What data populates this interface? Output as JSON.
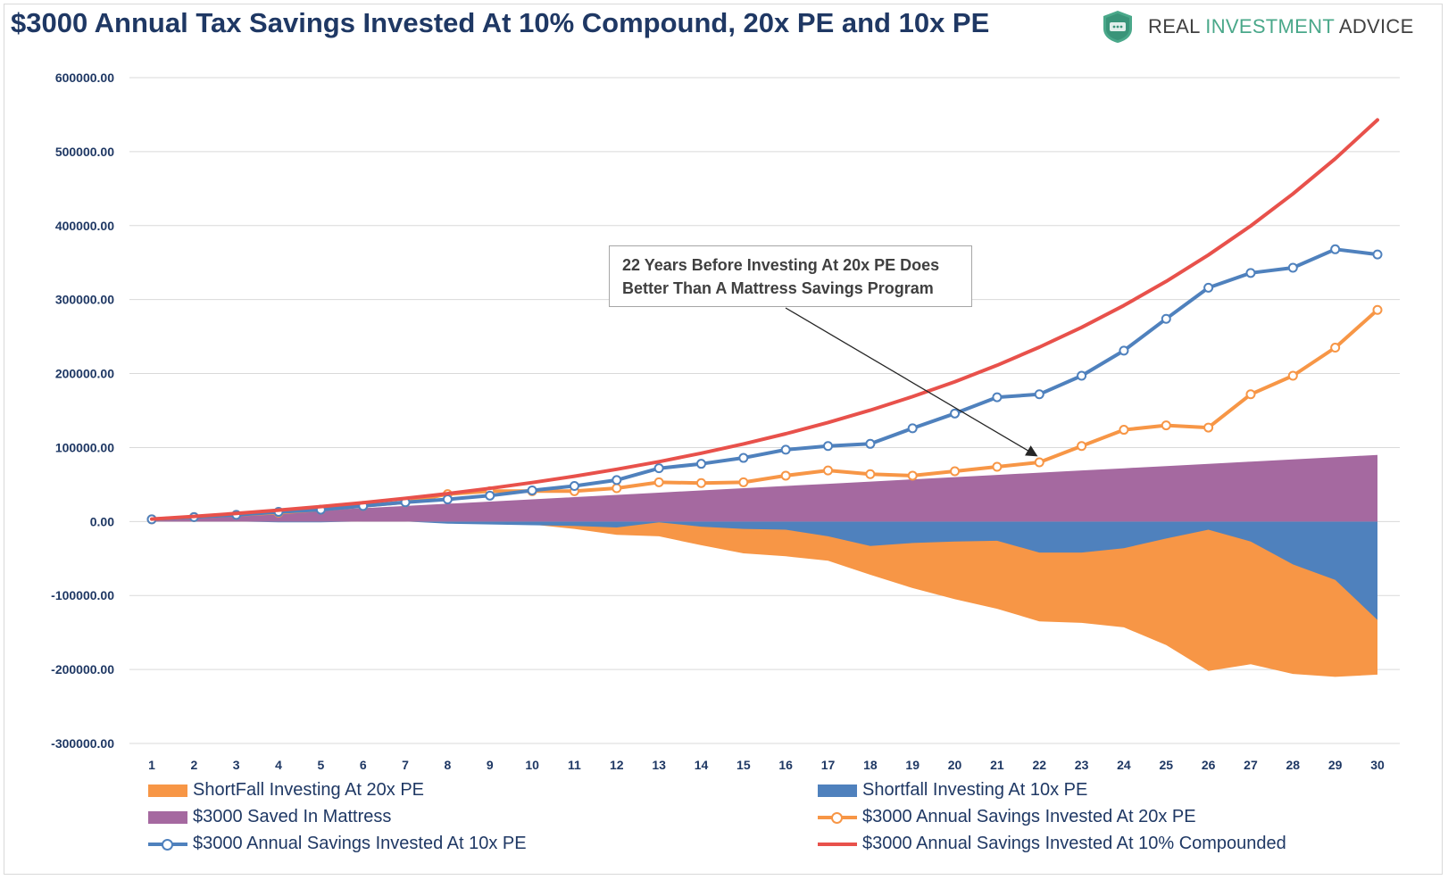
{
  "title": "$3000 Annual Tax Savings Invested At 10% Compound, 20x PE and 10x PE",
  "brand": {
    "word1": "REAL ",
    "word2": "INVESTMENT",
    "word3": " ADVICE",
    "icon": "shield-logo-icon"
  },
  "annotation": {
    "line1": "22 Years Before Investing At 20x PE Does",
    "line2": "Better Than A Mattress Savings Program"
  },
  "colors": {
    "title": "#1f3864",
    "shortfall_20x": "#f79646",
    "shortfall_10x": "#4f81bd",
    "mattress": "#a569a0",
    "invest_20x": "#f79646",
    "invest_10x": "#4f81bd",
    "compound_10pct": "#e8514b",
    "axis_text": "#1f3864"
  },
  "chart_data": {
    "type": "line",
    "title": "$3000 Annual Tax Savings Invested At 10% Compound, 20x PE and 10x PE",
    "xlabel": "",
    "ylabel": "",
    "ylim": [
      -300000,
      600000
    ],
    "yticks": [
      600000,
      500000,
      400000,
      300000,
      200000,
      100000,
      0,
      -100000,
      -200000,
      -300000
    ],
    "ytick_labels": [
      "600000.00",
      "500000.00",
      "400000.00",
      "300000.00",
      "200000.00",
      "100000.00",
      "0.00",
      "-100000.00",
      "-200000.00",
      "-300000.00"
    ],
    "x": [
      1,
      2,
      3,
      4,
      5,
      6,
      7,
      8,
      9,
      10,
      11,
      12,
      13,
      14,
      15,
      16,
      17,
      18,
      19,
      20,
      21,
      22,
      23,
      24,
      25,
      26,
      27,
      28,
      29,
      30
    ],
    "grid": true,
    "legend_position": "bottom",
    "series": [
      {
        "name": "ShortFall Investing At 20x PE",
        "kind": "area",
        "values": [
          0,
          0,
          0,
          0,
          0,
          0,
          0,
          -2000,
          -3000,
          -4000,
          -10000,
          -18000,
          -20000,
          -32000,
          -43000,
          -47000,
          -53000,
          -72000,
          -90000,
          -105000,
          -118000,
          -135000,
          -137000,
          -143000,
          -167000,
          -202000,
          -193000,
          -206000,
          -210000,
          -207000
        ]
      },
      {
        "name": "Shortfall Investing At 10x PE",
        "kind": "area",
        "values": [
          0,
          0,
          0,
          -1000,
          -1000,
          0,
          0,
          -3000,
          -4000,
          -5000,
          -6000,
          -8000,
          -1000,
          -7000,
          -10000,
          -11000,
          -20000,
          -33000,
          -29000,
          -27000,
          -26000,
          -42000,
          -42000,
          -36000,
          -23000,
          -11000,
          -27000,
          -58000,
          -79000,
          -133000
        ]
      },
      {
        "name": "$3000 Saved In Mattress",
        "kind": "area",
        "values": [
          3000,
          6000,
          9000,
          12000,
          15000,
          18000,
          21000,
          24000,
          27000,
          30000,
          33000,
          36000,
          39000,
          42000,
          45000,
          48000,
          51000,
          54000,
          57000,
          60000,
          63000,
          66000,
          69000,
          72000,
          75000,
          78000,
          81000,
          84000,
          87000,
          90000
        ]
      },
      {
        "name": "$3000 Annual Savings Invested At 20x PE",
        "kind": "line",
        "values": [
          3000,
          6000,
          9000,
          12000,
          16000,
          21000,
          26000,
          37000,
          41000,
          41000,
          41000,
          45000,
          53000,
          52000,
          53000,
          62000,
          69000,
          64000,
          62000,
          68000,
          74000,
          80000,
          102000,
          124000,
          130000,
          127000,
          172000,
          197000,
          235000,
          286000
        ]
      },
      {
        "name": "$3000 Annual Savings Invested At 10x PE",
        "kind": "line",
        "values": [
          3000,
          6000,
          9000,
          13000,
          16000,
          21000,
          26000,
          30000,
          35000,
          42000,
          48000,
          56000,
          72000,
          78000,
          86000,
          97000,
          102000,
          105000,
          126000,
          146000,
          168000,
          172000,
          197000,
          231000,
          274000,
          316000,
          336000,
          343000,
          368000,
          361000
        ]
      },
      {
        "name": "$3000 Annual Savings Invested At 10% Compounded",
        "kind": "line",
        "values": [
          3300,
          6930,
          10923,
          15315,
          20147,
          25462,
          31308,
          37739,
          44813,
          52594,
          61153,
          70569,
          80926,
          92318,
          104850,
          118635,
          133799,
          150479,
          168827,
          189010,
          211211,
          235632,
          262495,
          292045,
          324549,
          360304,
          399635,
          442898,
          490488,
          542837
        ]
      }
    ]
  }
}
